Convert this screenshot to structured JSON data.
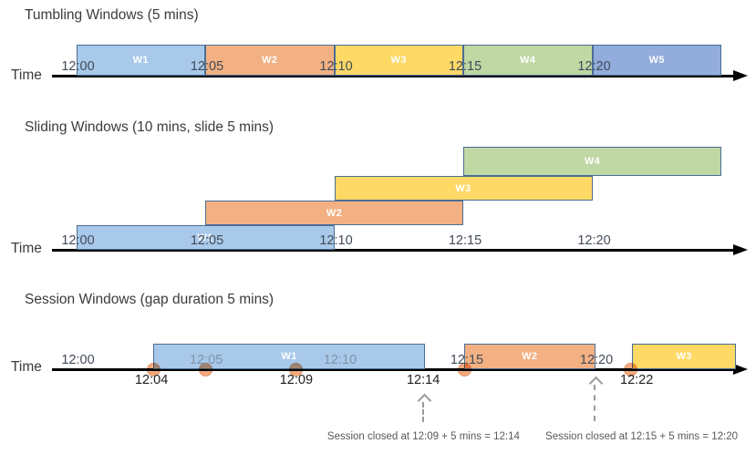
{
  "palette": {
    "box_border": "#4A6E94",
    "blue": "#A8C9EA",
    "orange": "#F3B183",
    "yellow": "#FED966",
    "green": "#BFD8A4",
    "periwinkle": "#92ACDC",
    "dot_fill": "#F3A87E",
    "dot_border": "#DE9468",
    "axis_color": "#000000",
    "tick_dark": "#424B58",
    "tick_light": "#8193A9",
    "annotation_gray": "#595959",
    "arrow_gray": "#9A9A9A",
    "title_color": "#3B3B3B"
  },
  "sections": [
    {
      "title": "Tumbling Windows (5 mins)",
      "time_axis_label": "Time",
      "windows": [
        {
          "label": "W1",
          "start_min": 0,
          "end_min": 5,
          "color": "blue",
          "row": 0
        },
        {
          "label": "W2",
          "start_min": 5,
          "end_min": 10,
          "color": "orange",
          "row": 0
        },
        {
          "label": "W3",
          "start_min": 10,
          "end_min": 15,
          "color": "yellow",
          "row": 0
        },
        {
          "label": "W4",
          "start_min": 15,
          "end_min": 20,
          "color": "green",
          "row": 0
        },
        {
          "label": "W5",
          "start_min": 20,
          "end_min": 25,
          "color": "periwinkle",
          "row": 0
        }
      ],
      "ticks": [
        {
          "text": "12:00",
          "min": 0,
          "style": "dark"
        },
        {
          "text": "12:05",
          "min": 5,
          "style": "dark"
        },
        {
          "text": "12:10",
          "min": 10,
          "style": "dark"
        },
        {
          "text": "12:15",
          "min": 15,
          "style": "dark"
        },
        {
          "text": "12:20",
          "min": 20,
          "style": "dark"
        }
      ]
    },
    {
      "title": "Sliding Windows (10 mins, slide 5 mins)",
      "time_axis_label": "Time",
      "windows": [
        {
          "label": "W1",
          "start_min": 0,
          "end_min": 10,
          "color": "blue",
          "row": 0
        },
        {
          "label": "W2",
          "start_min": 5,
          "end_min": 15,
          "color": "orange",
          "row": 1
        },
        {
          "label": "W3",
          "start_min": 10,
          "end_min": 20,
          "color": "yellow",
          "row": 2
        },
        {
          "label": "W4",
          "start_min": 15,
          "end_min": 25,
          "color": "green",
          "row": 3
        }
      ],
      "ticks": [
        {
          "text": "12:00",
          "min": 0,
          "style": "dark"
        },
        {
          "text": "12:05",
          "min": 5,
          "style": "dark"
        },
        {
          "text": "12:10",
          "min": 10,
          "style": "dark"
        },
        {
          "text": "12:15",
          "min": 15,
          "style": "dark"
        },
        {
          "text": "12:20",
          "min": 20,
          "style": "dark"
        }
      ]
    },
    {
      "title": "Session Windows (gap duration 5 mins)",
      "time_axis_label": "Time",
      "windows": [
        {
          "label": "W1",
          "start_min": 2.99,
          "end_min": 13.52,
          "color": "blue",
          "row": 0
        },
        {
          "label": "W2",
          "start_min": 15.02,
          "end_min": 20.12,
          "color": "orange",
          "row": 0
        },
        {
          "label": "W3",
          "start_min": 21.54,
          "end_min": 25.57,
          "color": "yellow",
          "row": 0
        }
      ],
      "ticks": [
        {
          "text": "12:00",
          "min": 0,
          "style": "dark"
        },
        {
          "text": "12:05",
          "min": 4.97,
          "style": "light"
        },
        {
          "text": "12:10",
          "min": 10.16,
          "style": "light"
        },
        {
          "text": "12:15",
          "min": 15.07,
          "style": "dark"
        },
        {
          "text": "12:20",
          "min": 20.09,
          "style": "dark"
        }
      ],
      "events": [
        {
          "min": 2.99
        },
        {
          "min": 5.0
        },
        {
          "min": 8.53
        },
        {
          "min": 15.07
        },
        {
          "min": 21.5
        }
      ],
      "event_labels": [
        {
          "text": "12:04",
          "min": 2.92
        },
        {
          "text": "12:09",
          "min": 8.53
        },
        {
          "text": "12:14",
          "min": 13.45
        },
        {
          "text": "12:22",
          "min": 21.72
        }
      ],
      "annotations": [
        {
          "text": "Session closed at 12:09 + 5 mins = 12:14",
          "arrow_min": 13.45,
          "center_min": 13.46
        },
        {
          "text": "Session closed at 12:15 + 5 mins = 12:20",
          "arrow_min": 20.09,
          "center_min": 21.91
        }
      ]
    }
  ]
}
